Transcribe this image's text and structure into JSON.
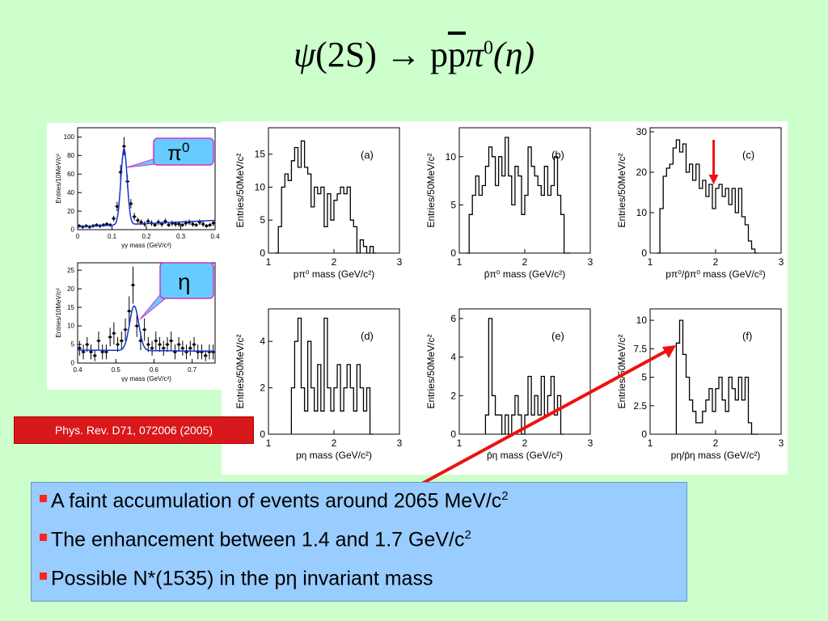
{
  "slide_title": {
    "psi": "ψ",
    "lhs": "(2S)",
    "arrow": "→",
    "p": "p",
    "pbar": "p",
    "pi": "π",
    "pi_sup": "0",
    "eta": "(η)"
  },
  "reference": "Phys. Rev. D71, 072006 (2005)",
  "callouts": {
    "pi0": {
      "label": "π",
      "sup": "0"
    },
    "eta": {
      "label": "η"
    }
  },
  "bullets": [
    {
      "text": "A faint accumulation of events around 2065 MeV/c",
      "sup": "2"
    },
    {
      "text": "The enhancement between 1.4 and 1.7 GeV/c",
      "sup": "2"
    },
    {
      "text": "Possible N*(1535) in the pη invariant mass",
      "sup": ""
    }
  ],
  "colors": {
    "background": "#ccffcc",
    "bullet_box": "#99ccff",
    "reference_box": "#d9181b",
    "fit_curve": "#1133cc",
    "callout": "#66ccff",
    "arrow": "#ee1111"
  },
  "chart_data": [
    {
      "id": "pi0",
      "type": "scatter",
      "xlabel": "γγ mass (GeV/c²)",
      "ylabel": "Entries/10MeV/c²",
      "xlim": [
        0,
        0.4
      ],
      "ylim": [
        0,
        110
      ],
      "xticks": [
        0,
        0.1,
        0.2,
        0.3,
        0.4
      ],
      "xticklabels": [
        "0",
        "0.1",
        "0.2",
        "0.3",
        "0.4"
      ],
      "yticks": [
        0,
        20,
        40,
        60,
        80,
        100
      ],
      "yticklabels": [
        "0",
        "20",
        "40",
        "60",
        "80",
        "100"
      ],
      "points": [
        [
          0.005,
          4
        ],
        [
          0.015,
          3
        ],
        [
          0.025,
          4
        ],
        [
          0.035,
          3
        ],
        [
          0.045,
          4
        ],
        [
          0.055,
          5
        ],
        [
          0.065,
          4
        ],
        [
          0.075,
          5
        ],
        [
          0.085,
          6
        ],
        [
          0.095,
          5
        ],
        [
          0.105,
          12
        ],
        [
          0.115,
          25
        ],
        [
          0.125,
          62
        ],
        [
          0.135,
          90
        ],
        [
          0.145,
          52
        ],
        [
          0.155,
          28
        ],
        [
          0.165,
          14
        ],
        [
          0.175,
          10
        ],
        [
          0.185,
          8
        ],
        [
          0.195,
          6
        ],
        [
          0.205,
          9
        ],
        [
          0.215,
          7
        ],
        [
          0.225,
          5
        ],
        [
          0.235,
          8
        ],
        [
          0.245,
          6
        ],
        [
          0.255,
          9
        ],
        [
          0.265,
          5
        ],
        [
          0.275,
          7
        ],
        [
          0.285,
          6
        ],
        [
          0.295,
          6
        ],
        [
          0.305,
          5
        ],
        [
          0.315,
          7
        ],
        [
          0.325,
          8
        ],
        [
          0.335,
          6
        ],
        [
          0.345,
          5
        ],
        [
          0.355,
          8
        ],
        [
          0.365,
          6
        ],
        [
          0.375,
          4
        ],
        [
          0.385,
          5
        ],
        [
          0.395,
          7
        ]
      ],
      "errors": [
        2,
        2,
        2,
        2,
        2,
        2,
        2,
        2,
        2,
        2,
        3,
        5,
        8,
        10,
        7,
        5,
        4,
        3,
        3,
        3,
        3,
        3,
        2,
        3,
        3,
        3,
        2,
        3,
        3,
        3,
        2,
        3,
        3,
        3,
        2,
        3,
        3,
        2,
        2,
        3
      ],
      "fit": {
        "peak": 0.135,
        "sigma": 0.009,
        "amp": 82,
        "bkg": [
          3,
          10
        ]
      }
    },
    {
      "id": "eta",
      "type": "scatter",
      "xlabel": "γγ mass (GeV/c²)",
      "ylabel": "Entries/10MeV/c²",
      "xlim": [
        0.4,
        0.76
      ],
      "ylim": [
        0,
        27
      ],
      "xticks": [
        0.4,
        0.5,
        0.6,
        0.7
      ],
      "xticklabels": [
        "0.4",
        "0.5",
        "0.6",
        "0.7"
      ],
      "yticks": [
        0,
        5,
        10,
        15,
        20,
        25
      ],
      "yticklabels": [
        "0",
        "5",
        "10",
        "15",
        "20",
        "25"
      ],
      "points": [
        [
          0.405,
          4
        ],
        [
          0.415,
          3
        ],
        [
          0.425,
          5
        ],
        [
          0.435,
          3
        ],
        [
          0.445,
          2
        ],
        [
          0.455,
          6
        ],
        [
          0.465,
          3
        ],
        [
          0.475,
          3
        ],
        [
          0.485,
          7
        ],
        [
          0.495,
          8
        ],
        [
          0.505,
          5
        ],
        [
          0.515,
          6
        ],
        [
          0.525,
          9
        ],
        [
          0.535,
          14
        ],
        [
          0.545,
          21
        ],
        [
          0.555,
          10
        ],
        [
          0.565,
          6
        ],
        [
          0.575,
          9
        ],
        [
          0.585,
          5
        ],
        [
          0.595,
          4
        ],
        [
          0.605,
          6
        ],
        [
          0.615,
          5
        ],
        [
          0.625,
          4
        ],
        [
          0.635,
          5
        ],
        [
          0.645,
          6
        ],
        [
          0.655,
          3
        ],
        [
          0.665,
          5
        ],
        [
          0.675,
          4
        ],
        [
          0.685,
          3
        ],
        [
          0.695,
          4
        ],
        [
          0.705,
          5
        ],
        [
          0.715,
          3
        ],
        [
          0.725,
          3
        ],
        [
          0.735,
          2
        ],
        [
          0.745,
          3
        ],
        [
          0.755,
          3
        ]
      ],
      "errors": [
        2,
        2,
        2,
        2,
        1.5,
        2.5,
        2,
        2,
        2.5,
        3,
        2,
        2.5,
        3,
        4,
        5,
        3,
        2.5,
        3,
        2,
        2,
        2.5,
        2,
        2,
        2,
        2.5,
        2,
        2,
        2,
        2,
        2,
        2,
        2,
        2,
        1.5,
        2,
        2
      ],
      "fit": {
        "peak": 0.548,
        "sigma": 0.012,
        "amp": 12,
        "bkg": [
          3.5,
          3.2
        ]
      }
    },
    {
      "id": "a",
      "type": "histogram",
      "tag": "(a)",
      "xlabel": "pπ⁰ mass (GeV/c²)",
      "ylabel": "Entries/50MeV/c²",
      "xlim": [
        1,
        3
      ],
      "ylim": [
        0,
        19
      ],
      "yticks": [
        0,
        5,
        10,
        15
      ],
      "xticks": [
        1,
        2,
        3
      ],
      "bin_start": 1.1,
      "bin_width": 0.05,
      "values": [
        0,
        4,
        10,
        12,
        11,
        14,
        16,
        13,
        17,
        13,
        12,
        7,
        10,
        9,
        10,
        4,
        9,
        5,
        8,
        9,
        10,
        9,
        10,
        5,
        4,
        0,
        2,
        1,
        0,
        1,
        0
      ]
    },
    {
      "id": "b",
      "type": "histogram",
      "tag": "(b)",
      "xlabel": "p̄π⁰ mass (GeV/c²)",
      "ylabel": "Entries/50MeV/c²",
      "xlim": [
        1,
        3
      ],
      "ylim": [
        0,
        13
      ],
      "yticks": [
        0,
        5,
        10
      ],
      "xticks": [
        1,
        2,
        3
      ],
      "bin_start": 1.1,
      "bin_width": 0.05,
      "values": [
        0,
        4,
        6,
        8,
        6,
        7,
        9,
        11,
        10,
        7,
        10,
        8,
        12,
        8,
        5,
        9,
        8,
        4,
        6,
        11,
        9,
        8,
        7,
        6,
        9,
        6,
        7,
        10,
        6,
        4,
        0,
        0
      ]
    },
    {
      "id": "c",
      "type": "histogram",
      "tag": "(c)",
      "xlabel": "pπ⁰/p̄π⁰ mass (GeV/c²)",
      "ylabel": "Entries/50MeV/c²",
      "xlim": [
        1,
        3
      ],
      "ylim": [
        0,
        31
      ],
      "yticks": [
        0,
        10,
        20,
        30
      ],
      "xticks": [
        1,
        2,
        3
      ],
      "bin_start": 1.1,
      "bin_width": 0.05,
      "values": [
        0,
        11,
        19,
        21,
        22,
        26,
        28,
        25,
        27,
        20,
        22,
        18,
        22,
        16,
        18,
        14,
        17,
        11,
        16,
        17,
        14,
        16,
        12,
        16,
        10,
        16,
        9,
        7,
        3,
        1,
        0
      ],
      "marker": {
        "x": 1.97,
        "y_from": 28,
        "y_to": 17
      }
    },
    {
      "id": "d",
      "type": "histogram",
      "tag": "(d)",
      "xlabel": "pη mass (GeV/c²)",
      "ylabel": "Entries/50MeV/c²",
      "xlim": [
        1,
        3
      ],
      "ylim": [
        0,
        5.4
      ],
      "yticks": [
        0,
        2,
        4
      ],
      "xticks": [
        1,
        2,
        3
      ],
      "bin_start": 1.35,
      "bin_width": 0.05,
      "values": [
        2,
        4,
        5,
        2,
        1,
        4,
        2,
        1,
        3,
        1,
        5,
        2,
        1,
        2,
        3,
        1,
        2,
        3,
        2,
        1,
        3,
        2,
        1,
        2,
        0
      ]
    },
    {
      "id": "e",
      "type": "histogram",
      "tag": "(e)",
      "xlabel": "p̄η mass (GeV/c²)",
      "ylabel": "Entries/50MeV/c²",
      "xlim": [
        1,
        3
      ],
      "ylim": [
        0,
        6.5
      ],
      "yticks": [
        0,
        2,
        4,
        6
      ],
      "xticks": [
        1,
        2,
        3
      ],
      "bin_start": 1.4,
      "bin_width": 0.05,
      "values": [
        1,
        6,
        2,
        1,
        1,
        0,
        1,
        0,
        1,
        2,
        1,
        0,
        1,
        3,
        1,
        2,
        1,
        3,
        1,
        2,
        3,
        1,
        2,
        0
      ]
    },
    {
      "id": "f",
      "type": "histogram",
      "tag": "(f)",
      "xlabel": "pη/p̄η mass (GeV/c²)",
      "ylabel": "Entries/50MeV/c²",
      "xlim": [
        1,
        3
      ],
      "ylim": [
        0,
        11
      ],
      "yticks": [
        0,
        2.5,
        5,
        7.5,
        10
      ],
      "yticklabels": [
        "0",
        "2.5",
        "5",
        "7.5",
        "10"
      ],
      "xticks": [
        1,
        2,
        3
      ],
      "bin_start": 1.4,
      "bin_width": 0.05,
      "values": [
        8,
        10,
        7,
        5,
        3,
        2,
        1,
        1,
        2,
        3,
        4,
        2,
        4,
        5,
        3,
        2,
        5,
        4,
        3,
        5,
        3,
        5,
        1,
        0,
        0
      ]
    }
  ]
}
